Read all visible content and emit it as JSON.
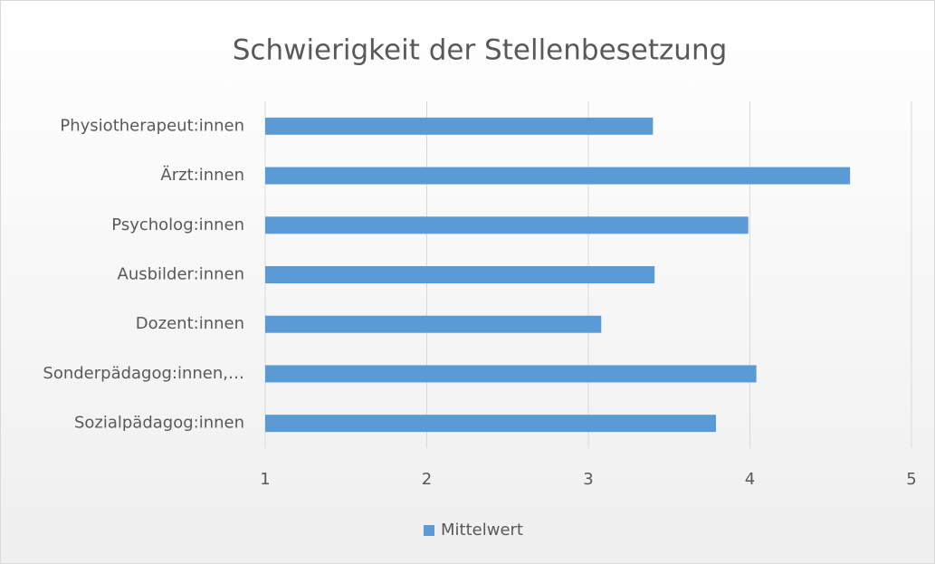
{
  "chart_data": {
    "type": "bar",
    "orientation": "horizontal",
    "title": "Schwierigkeit der Stellenbesetzung",
    "categories": [
      "Physiotherapeut:innen",
      "Ärzt:innen",
      "Psycholog:innen",
      "Ausbilder:innen",
      "Dozent:innen",
      "Sonderpädagog:innen,…",
      "Sozialpädagog:innen"
    ],
    "series": [
      {
        "name": "Mittelwert",
        "color": "#5b9bd5",
        "values": [
          3.4,
          4.62,
          3.99,
          3.41,
          3.08,
          4.04,
          3.79
        ]
      }
    ],
    "xlim": [
      1,
      5
    ],
    "xticks": [
      1,
      2,
      3,
      4,
      5
    ],
    "grid": true,
    "legend": "bottom"
  }
}
